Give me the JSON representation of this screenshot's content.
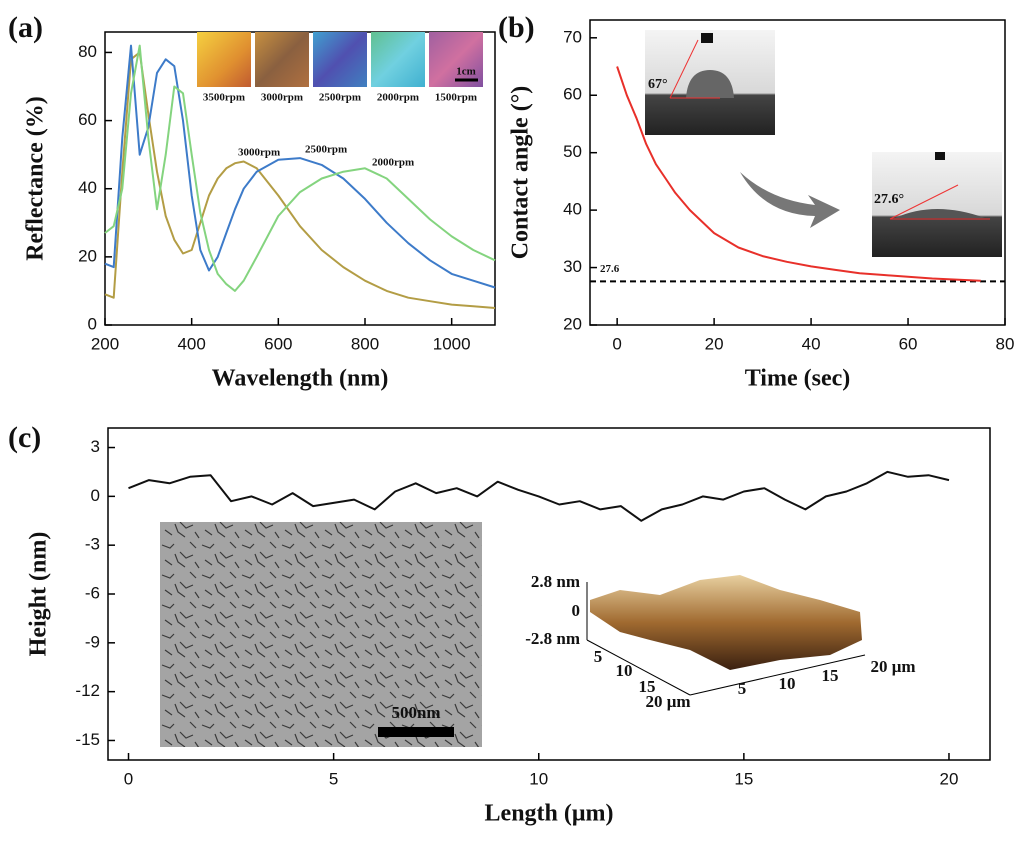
{
  "chart_data": [
    {
      "type": "line",
      "panel_label": "(a)",
      "x_label": "Wavelength (nm)",
      "y_label": "Reflectance (%)",
      "x": [
        200,
        220,
        240,
        260,
        280,
        300,
        320,
        340,
        360,
        380,
        400,
        420,
        440,
        460,
        480,
        500,
        520,
        550,
        600,
        650,
        700,
        750,
        800,
        850,
        900,
        950,
        1000,
        1050,
        1100
      ],
      "series": [
        {
          "name": "3000rpm",
          "color": "#b39d45",
          "values": [
            9,
            8,
            45,
            78,
            80,
            62,
            45,
            32,
            25,
            21,
            22,
            30,
            38,
            43,
            46,
            47.5,
            48,
            46,
            38,
            29,
            22,
            17,
            13,
            10,
            8,
            7,
            6,
            5.5,
            5
          ]
        },
        {
          "name": "2500rpm",
          "color": "#3d7bc9",
          "values": [
            18,
            17,
            55,
            82,
            50,
            58,
            74,
            78,
            76,
            60,
            38,
            22,
            16,
            20,
            27,
            34,
            40,
            45,
            48.5,
            49,
            47,
            43,
            37,
            30,
            24,
            19,
            15,
            13,
            11
          ]
        },
        {
          "name": "2000rpm",
          "color": "#84d47f",
          "values": [
            27,
            29,
            40,
            68,
            82,
            55,
            34,
            50,
            70,
            68,
            50,
            33,
            22,
            15,
            12,
            10,
            13,
            20,
            32,
            39,
            43,
            45,
            46,
            43,
            37,
            31,
            26,
            22,
            19
          ]
        }
      ],
      "xlim": [
        200,
        1100
      ],
      "xticks": [
        200,
        400,
        600,
        800,
        1000
      ],
      "ylim": [
        0,
        86
      ],
      "yticks": [
        0,
        20,
        40,
        60,
        80
      ],
      "photo_labels": [
        "3500rpm",
        "3000rpm",
        "2500rpm",
        "2000rpm",
        "1500rpm"
      ],
      "scale_bar": "1cm"
    },
    {
      "type": "line",
      "panel_label": "(b)",
      "x_label": "Time (sec)",
      "y_label": "Contact angle (°)",
      "x": [
        0,
        2,
        4,
        6,
        8,
        10,
        12,
        15,
        20,
        25,
        30,
        35,
        40,
        45,
        50,
        55,
        60,
        65,
        70,
        75
      ],
      "values": [
        65,
        60,
        56,
        51.5,
        48,
        45.5,
        43,
        40,
        36,
        33.5,
        32,
        31,
        30.2,
        29.6,
        29,
        28.7,
        28.4,
        28.1,
        27.9,
        27.7
      ],
      "color": "#e8302a",
      "xlim": [
        -5.6,
        80
      ],
      "xticks": [
        0,
        20,
        40,
        60,
        80
      ],
      "ylim": [
        20,
        73.1
      ],
      "yticks": [
        20,
        30,
        40,
        50,
        60,
        70
      ],
      "reference_line": 27.6,
      "image_labels": [
        "67°",
        "27.6°"
      ]
    },
    {
      "type": "line",
      "panel_label": "(c)",
      "x_label": "Length (μm)",
      "y_label": "Height (nm)",
      "x": [
        0,
        0.5,
        1,
        1.5,
        2,
        2.5,
        3,
        3.5,
        4,
        4.5,
        5,
        5.5,
        6,
        6.5,
        7,
        7.5,
        8,
        8.5,
        9,
        9.5,
        10,
        10.5,
        11,
        11.5,
        12,
        12.5,
        13,
        13.5,
        14,
        14.5,
        15,
        15.5,
        16,
        16.5,
        17,
        17.5,
        18,
        18.5,
        19,
        19.5,
        20
      ],
      "values": [
        0.5,
        1,
        0.8,
        1.2,
        1.3,
        -0.3,
        0,
        -0.5,
        0.2,
        -0.6,
        -0.4,
        -0.2,
        -0.8,
        0.3,
        0.8,
        0.2,
        0.5,
        0,
        0.9,
        0.4,
        0,
        -0.5,
        -0.3,
        -0.8,
        -0.6,
        -1.5,
        -0.8,
        -0.5,
        0,
        -0.2,
        0.3,
        0.5,
        -0.2,
        -0.8,
        0,
        0.3,
        0.8,
        1.5,
        1.2,
        1.3,
        1
      ],
      "color": "#111111",
      "xlim": [
        -0.5,
        21
      ],
      "xticks": [
        0,
        5,
        10,
        15,
        20
      ],
      "ylim": [
        -16.2,
        4.2
      ],
      "yticks": [
        3,
        0,
        -3,
        -6,
        -9,
        -12,
        -15
      ],
      "scale_bar": "500nm",
      "afm_labels": {
        "z": [
          "2.8 nm",
          "0",
          "-2.8 nm"
        ],
        "y": [
          "5",
          "10",
          "15",
          "20 μm"
        ],
        "x": [
          "5",
          "10",
          "15",
          "20 μm"
        ]
      }
    }
  ]
}
